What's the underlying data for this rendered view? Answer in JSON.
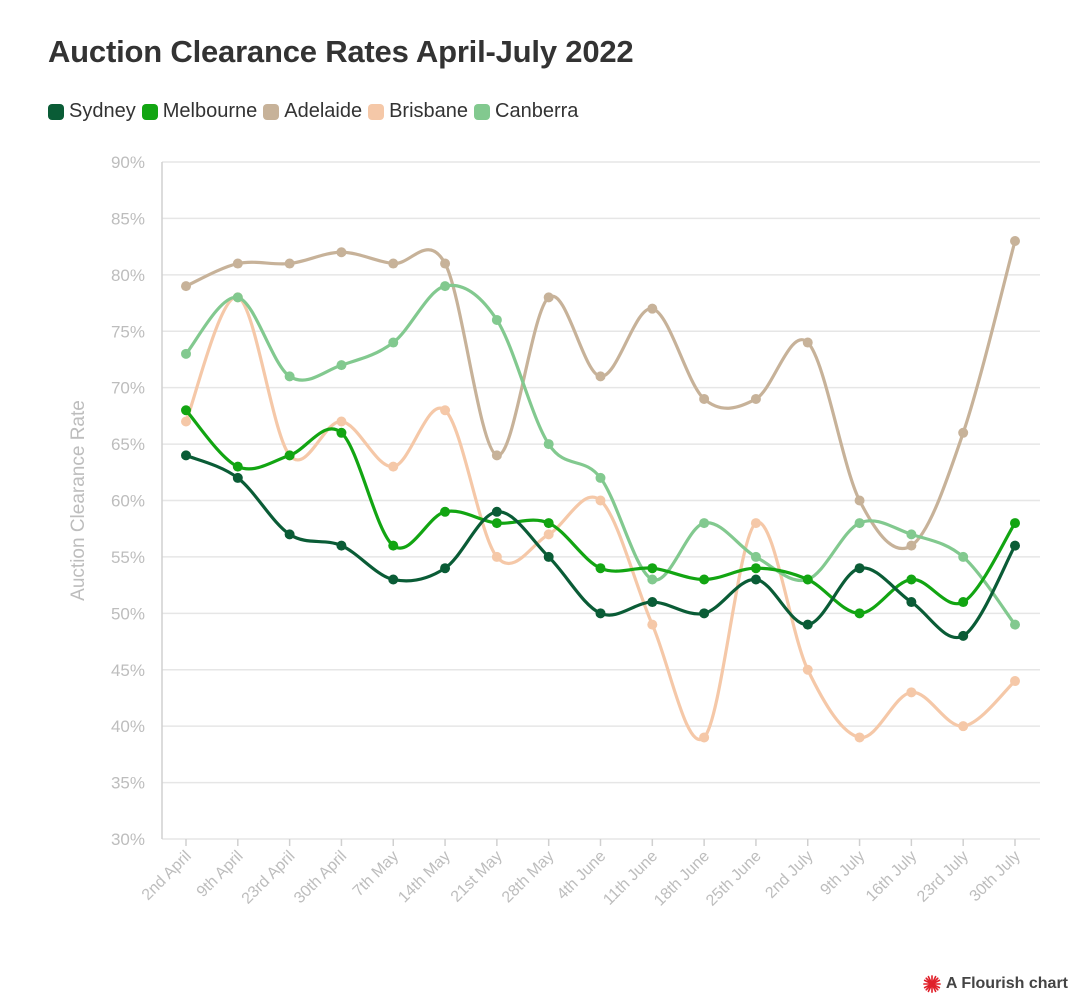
{
  "chart_data": {
    "type": "line",
    "title": "Auction Clearance Rates April-July 2022",
    "ylabel": "Auction Clearance Rate",
    "xlabel": "",
    "ylim": [
      30,
      90
    ],
    "ytick_step": 5,
    "ytick_suffix": "%",
    "grid": true,
    "legend_position": "top-left",
    "categories": [
      "2nd April",
      "9th April",
      "23rd April",
      "30th April",
      "7th May",
      "14th May",
      "21st May",
      "28th May",
      "4th June",
      "11th June",
      "18th June",
      "25th June",
      "2nd July",
      "9th July",
      "16th July",
      "23rd July",
      "30th July"
    ],
    "series": [
      {
        "name": "Sydney",
        "color": "#0a5c36",
        "values": [
          64,
          62,
          57,
          56,
          53,
          54,
          59,
          55,
          50,
          51,
          50,
          53,
          49,
          54,
          51,
          48,
          56
        ]
      },
      {
        "name": "Melbourne",
        "color": "#12a512",
        "values": [
          68,
          63,
          64,
          66,
          56,
          59,
          58,
          58,
          54,
          54,
          53,
          54,
          53,
          50,
          53,
          51,
          58
        ]
      },
      {
        "name": "Adelaide",
        "color": "#c7b299",
        "values": [
          79,
          81,
          81,
          82,
          81,
          81,
          64,
          78,
          71,
          77,
          69,
          69,
          74,
          60,
          56,
          66,
          83
        ]
      },
      {
        "name": "Brisbane",
        "color": "#f5c8a8",
        "values": [
          67,
          78,
          64,
          67,
          63,
          68,
          55,
          57,
          60,
          49,
          39,
          58,
          45,
          39,
          43,
          40,
          44
        ]
      },
      {
        "name": "Canberra",
        "color": "#82c98f",
        "values": [
          73,
          78,
          71,
          72,
          74,
          79,
          76,
          65,
          62,
          53,
          58,
          55,
          53,
          58,
          57,
          55,
          49
        ]
      }
    ],
    "draw_order": [
      "Adelaide",
      "Brisbane",
      "Canberra",
      "Melbourne",
      "Sydney"
    ]
  },
  "footer": {
    "label": "A Flourish chart",
    "icon": "flourish-logo-icon"
  }
}
